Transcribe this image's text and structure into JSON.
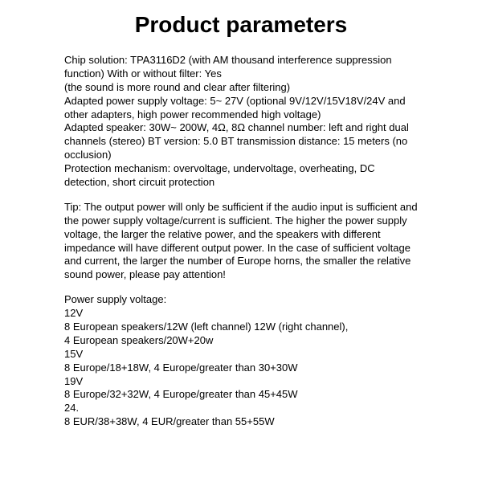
{
  "title": "Product parameters",
  "specs_block": "Chip solution: TPA3116D2 (with AM thousand interference suppression function) With or without filter: Yes\n(the sound is more round and clear after filtering)\nAdapted power supply voltage: 5~ 27V (optional 9V/12V/15V18V/24V and other adapters, high power recommended high voltage)\nAdapted speaker: 30W~ 200W, 4Ω, 8Ω channel number: left and right dual channels (stereo) BT version: 5.0 BT transmission distance: 15 meters (no occlusion)\nProtection mechanism: overvoltage, undervoltage, overheating, DC detection, short circuit protection",
  "tip_block": "Tip: The output power will only be sufficient if the audio input is sufficient and the power supply voltage/current is sufficient. The higher the power supply voltage, the larger the relative power, and the speakers with different impedance will have different output power. In the case of sufficient voltage and current, the larger the number of Europe horns, the smaller the relative sound power, please pay attention!",
  "power_lines": [
    "Power supply voltage:",
    "12V",
    "8 European speakers/12W (left channel)   12W (right channel),",
    "4 European speakers/20W+20w",
    "15V",
    "8 Europe/18+18W, 4 Europe/greater than 30+30W",
    "19V",
    "8 Europe/32+32W, 4 Europe/greater than 45+45W",
    "24.",
    "8 EUR/38+38W, 4 EUR/greater than 55+55W"
  ]
}
